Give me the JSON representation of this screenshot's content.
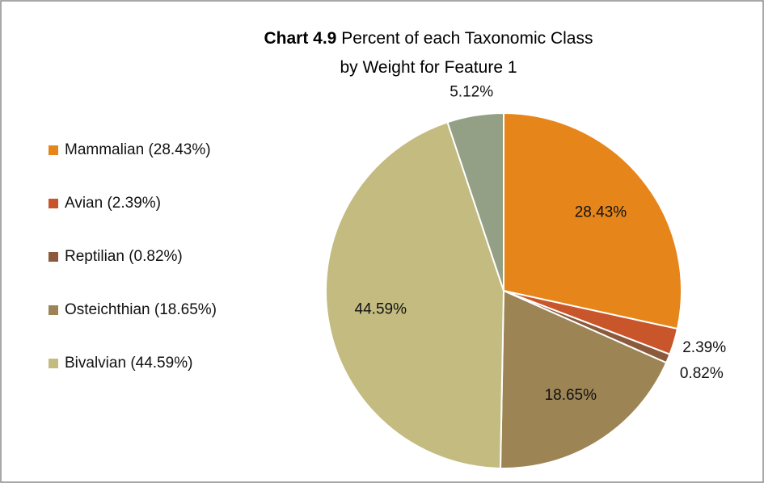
{
  "chart_data": {
    "type": "pie",
    "title_label": "Chart 4.9",
    "title": "Percent of each Taxonomic Class by Weight for Feature 1",
    "categories": [
      "Mammalian (28.43%)",
      "Avian (2.39%)",
      "Reptilian (0.82%)",
      "Osteichthian (18.65%)",
      "Bivalvian (44.59%)",
      null
    ],
    "values": [
      28.43,
      2.39,
      0.82,
      18.65,
      44.59,
      5.12
    ],
    "value_labels": [
      "28.43%",
      "2.39%",
      "0.82%",
      "18.65%",
      "44.59%",
      "5.12%"
    ],
    "colors": [
      "#e6861a",
      "#c8562a",
      "#8b5a3c",
      "#9c8455",
      "#c3bb80",
      "#93a085"
    ],
    "legend": "left"
  }
}
